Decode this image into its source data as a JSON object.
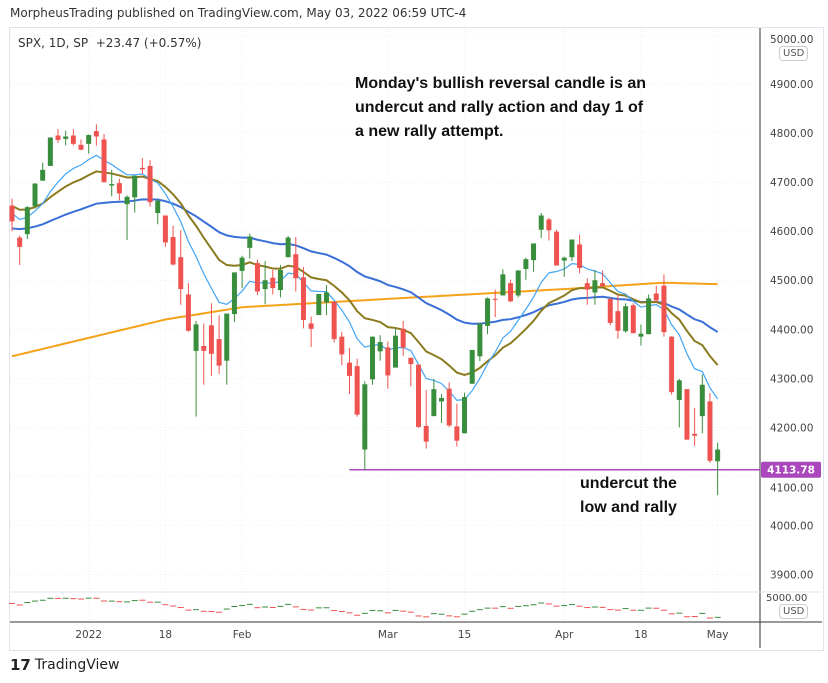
{
  "header": {
    "published": "MorpheusTrading published on TradingView.com, May 03, 2022 06:59 UTC-4"
  },
  "legend": {
    "symbol": "SPX, 1D, SP",
    "change": "+23.47 (+0.57%)"
  },
  "annotation": {
    "main": [
      "Monday's bullish reversal candle is an",
      "undercut and rally action and day 1 of",
      "a new rally attempt."
    ],
    "low": [
      "undercut the",
      "low and rally"
    ]
  },
  "currency": "USD",
  "footer": {
    "brand": "TradingView"
  },
  "colors": {
    "up": "#26a69a",
    "upDark": "#388e3c",
    "down": "#ef5350",
    "ma10": "#42a5f5",
    "ma20": "#8b7a1e",
    "ma50": "#3a6fd8",
    "ma200": "#f5a21b",
    "level": "#ab47bc"
  },
  "chart_data": {
    "type": "candlestick",
    "ylim": [
      3860,
      5000
    ],
    "yticks": [
      3900,
      4000,
      4100,
      4200,
      4300,
      4400,
      4500,
      4600,
      4700,
      4800,
      4900,
      5000
    ],
    "ytick_labels": [
      "3900.00",
      "4000.00",
      "4100.00",
      "4200.00",
      "4300.00",
      "4400.00",
      "4500.00",
      "4600.00",
      "4700.00",
      "4800.00",
      "4900.00",
      "5000.00"
    ],
    "xticks": [
      {
        "i": 10,
        "label": "2022"
      },
      {
        "i": 20,
        "label": "18"
      },
      {
        "i": 30,
        "label": "Feb"
      },
      {
        "i": 49,
        "label": "Mar"
      },
      {
        "i": 59,
        "label": "15"
      },
      {
        "i": 72,
        "label": "Apr"
      },
      {
        "i": 82,
        "label": "18"
      },
      {
        "i": 92,
        "label": "May"
      }
    ],
    "level": {
      "value": 4113.78,
      "label": "4113.78",
      "from_index": 44
    },
    "ohlc": [
      [
        4652,
        4666,
        4600,
        4620
      ],
      [
        4587,
        4591,
        4531,
        4568
      ],
      [
        4594,
        4651,
        4584,
        4649
      ],
      [
        4651,
        4698,
        4646,
        4697
      ],
      [
        4703,
        4740,
        4703,
        4725
      ],
      [
        4733,
        4791,
        4733,
        4791
      ],
      [
        4795,
        4808,
        4780,
        4786
      ],
      [
        4788,
        4805,
        4775,
        4793
      ],
      [
        4795,
        4808,
        4775,
        4778
      ],
      [
        4776,
        4787,
        4765,
        4766
      ],
      [
        4778,
        4797,
        4758,
        4796
      ],
      [
        4804,
        4818,
        4774,
        4793
      ],
      [
        4787,
        4798,
        4699,
        4700
      ],
      [
        4693,
        4725,
        4671,
        4696
      ],
      [
        4698,
        4707,
        4663,
        4677
      ],
      [
        4655,
        4673,
        4582,
        4670
      ],
      [
        4669,
        4714,
        4638,
        4713
      ],
      [
        4729,
        4749,
        4717,
        4726
      ],
      [
        4733,
        4745,
        4650,
        4659
      ],
      [
        4637,
        4665,
        4614,
        4662
      ],
      [
        4632,
        4632,
        4568,
        4577
      ],
      [
        4588,
        4611,
        4530,
        4532
      ],
      [
        4547,
        4602,
        4450,
        4482
      ],
      [
        4471,
        4494,
        4395,
        4397
      ],
      [
        4356,
        4417,
        4222,
        4410
      ],
      [
        4366,
        4412,
        4287,
        4356
      ],
      [
        4408,
        4453,
        4305,
        4350
      ],
      [
        4380,
        4429,
        4309,
        4326
      ],
      [
        4336,
        4432,
        4287,
        4432
      ],
      [
        4431,
        4516,
        4415,
        4516
      ],
      [
        4519,
        4550,
        4484,
        4546
      ],
      [
        4566,
        4595,
        4544,
        4589
      ],
      [
        4535,
        4542,
        4470,
        4477
      ],
      [
        4482,
        4539,
        4451,
        4500
      ],
      [
        4505,
        4521,
        4471,
        4484
      ],
      [
        4480,
        4531,
        4465,
        4521
      ],
      [
        4547,
        4590,
        4547,
        4587
      ],
      [
        4553,
        4588,
        4477,
        4504
      ],
      [
        4506,
        4527,
        4402,
        4419
      ],
      [
        4412,
        4426,
        4364,
        4401
      ],
      [
        4429,
        4472,
        4429,
        4472
      ],
      [
        4455,
        4490,
        4429,
        4475
      ],
      [
        4456,
        4456,
        4373,
        4380
      ],
      [
        4385,
        4395,
        4327,
        4349
      ],
      [
        4332,
        4362,
        4268,
        4305
      ],
      [
        4325,
        4340,
        4222,
        4226
      ],
      [
        4155,
        4294,
        4114,
        4288
      ],
      [
        4298,
        4385,
        4287,
        4385
      ],
      [
        4355,
        4388,
        4336,
        4374
      ],
      [
        4363,
        4375,
        4279,
        4306
      ],
      [
        4322,
        4401,
        4322,
        4387
      ],
      [
        4401,
        4417,
        4346,
        4363
      ],
      [
        4342,
        4342,
        4284,
        4329
      ],
      [
        4328,
        4328,
        4199,
        4201
      ],
      [
        4203,
        4276,
        4157,
        4171
      ],
      [
        4223,
        4299,
        4223,
        4278
      ],
      [
        4253,
        4268,
        4209,
        4260
      ],
      [
        4279,
        4292,
        4201,
        4204
      ],
      [
        4202,
        4248,
        4161,
        4173
      ],
      [
        4188,
        4271,
        4188,
        4262
      ],
      [
        4289,
        4358,
        4289,
        4358
      ],
      [
        4345,
        4412,
        4335,
        4412
      ],
      [
        4407,
        4465,
        4390,
        4463
      ],
      [
        4462,
        4481,
        4425,
        4461
      ],
      [
        4469,
        4522,
        4469,
        4512
      ],
      [
        4494,
        4501,
        4455,
        4457
      ],
      [
        4469,
        4520,
        4465,
        4520
      ],
      [
        4523,
        4546,
        4501,
        4543
      ],
      [
        4541,
        4575,
        4517,
        4575
      ],
      [
        4603,
        4637,
        4586,
        4632
      ],
      [
        4624,
        4627,
        4581,
        4602
      ],
      [
        4599,
        4603,
        4530,
        4530
      ],
      [
        4540,
        4548,
        4507,
        4546
      ],
      [
        4547,
        4583,
        4539,
        4583
      ],
      [
        4573,
        4593,
        4514,
        4525
      ],
      [
        4494,
        4504,
        4450,
        4481
      ],
      [
        4475,
        4521,
        4450,
        4500
      ],
      [
        4494,
        4520,
        4487,
        4488
      ],
      [
        4462,
        4464,
        4408,
        4413
      ],
      [
        4437,
        4471,
        4381,
        4397
      ],
      [
        4396,
        4453,
        4393,
        4447
      ],
      [
        4449,
        4453,
        4392,
        4392
      ],
      [
        4385,
        4410,
        4367,
        4391
      ],
      [
        4390,
        4471,
        4390,
        4463
      ],
      [
        4473,
        4489,
        4455,
        4459
      ],
      [
        4489,
        4512,
        4385,
        4394
      ],
      [
        4385,
        4386,
        4267,
        4272
      ],
      [
        4256,
        4299,
        4200,
        4296
      ],
      [
        4278,
        4278,
        4175,
        4175
      ],
      [
        4187,
        4240,
        4162,
        4183
      ],
      [
        4223,
        4308,
        4188,
        4287
      ],
      [
        4253,
        4270,
        4128,
        4132
      ],
      [
        4131,
        4169,
        4062,
        4155
      ]
    ],
    "ema_seeds": {
      "ma10": 4640,
      "ma20": 4655,
      "ma50": 4605
    },
    "ma200_points": [
      [
        0,
        4345
      ],
      [
        20,
        4420
      ],
      [
        30,
        4445
      ],
      [
        49,
        4462
      ],
      [
        72,
        4482
      ],
      [
        85,
        4495
      ],
      [
        92,
        4492
      ]
    ]
  }
}
